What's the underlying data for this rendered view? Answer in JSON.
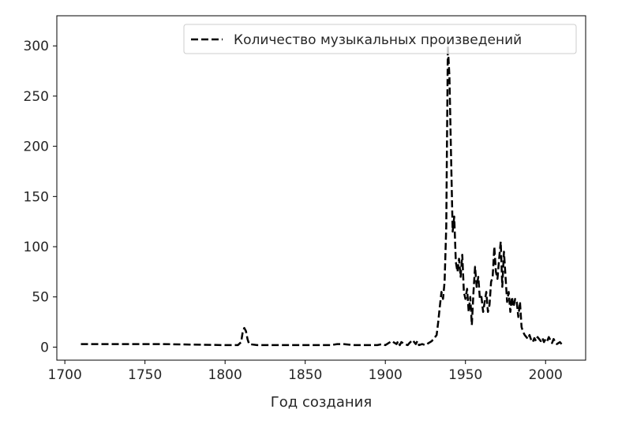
{
  "chart_data": {
    "type": "line",
    "title": "",
    "xlabel": "Год создания",
    "ylabel": "",
    "xlim": [
      1695,
      2025
    ],
    "ylim": [
      -13,
      330
    ],
    "xticks": [
      1700,
      1750,
      1800,
      1850,
      1900,
      1950,
      2000
    ],
    "yticks": [
      0,
      50,
      100,
      150,
      200,
      250,
      300
    ],
    "grid": false,
    "legend_position": "upper right",
    "line_color": "#000000",
    "line_style": "dashed",
    "series": [
      {
        "name": "Количество музыкальных произведений",
        "x": [
          1710,
          1760,
          1800,
          1808,
          1810,
          1811,
          1812,
          1813,
          1814,
          1815,
          1820,
          1840,
          1866,
          1870,
          1874,
          1880,
          1895,
          1898,
          1900,
          1902,
          1903,
          1904,
          1906,
          1907,
          1908,
          1909,
          1910,
          1912,
          1914,
          1915,
          1917,
          1919,
          1920,
          1921,
          1923,
          1925,
          1927,
          1929,
          1930,
          1931,
          1932,
          1933,
          1934,
          1935,
          1936,
          1937,
          1938,
          1939,
          1940,
          1941,
          1942,
          1943,
          1944,
          1945,
          1946,
          1947,
          1948,
          1949,
          1950,
          1951,
          1952,
          1953,
          1954,
          1955,
          1956,
          1957,
          1958,
          1959,
          1960,
          1961,
          1962,
          1963,
          1964,
          1965,
          1966,
          1967,
          1968,
          1969,
          1970,
          1971,
          1972,
          1973,
          1974,
          1975,
          1976,
          1977,
          1978,
          1979,
          1980,
          1981,
          1982,
          1983,
          1984,
          1985,
          1986,
          1987,
          1988,
          1989,
          1990,
          1991,
          1992,
          1993,
          1994,
          1995,
          1996,
          1997,
          1998,
          1999,
          2000,
          2001,
          2002,
          2003,
          2004,
          2005,
          2006,
          2007,
          2008,
          2009,
          2010
        ],
        "y": [
          3,
          3,
          2,
          2,
          5,
          15,
          19,
          16,
          8,
          3,
          2,
          2,
          2,
          3,
          3,
          2,
          2,
          3,
          2,
          4,
          5,
          6,
          4,
          3,
          6,
          2,
          5,
          3,
          2,
          4,
          7,
          3,
          6,
          2,
          3,
          2,
          4,
          6,
          8,
          10,
          12,
          25,
          40,
          55,
          48,
          65,
          120,
          300,
          270,
          190,
          115,
          130,
          85,
          75,
          88,
          70,
          92,
          55,
          48,
          58,
          35,
          50,
          22,
          55,
          80,
          60,
          70,
          48,
          50,
          35,
          45,
          55,
          35,
          42,
          65,
          70,
          100,
          75,
          68,
          88,
          105,
          60,
          95,
          70,
          45,
          55,
          35,
          50,
          40,
          48,
          45,
          30,
          45,
          20,
          15,
          12,
          10,
          8,
          12,
          7,
          5,
          9,
          6,
          10,
          8,
          6,
          9,
          5,
          8,
          6,
          10,
          7,
          4,
          8,
          5,
          3,
          4,
          5,
          3
        ]
      }
    ]
  }
}
